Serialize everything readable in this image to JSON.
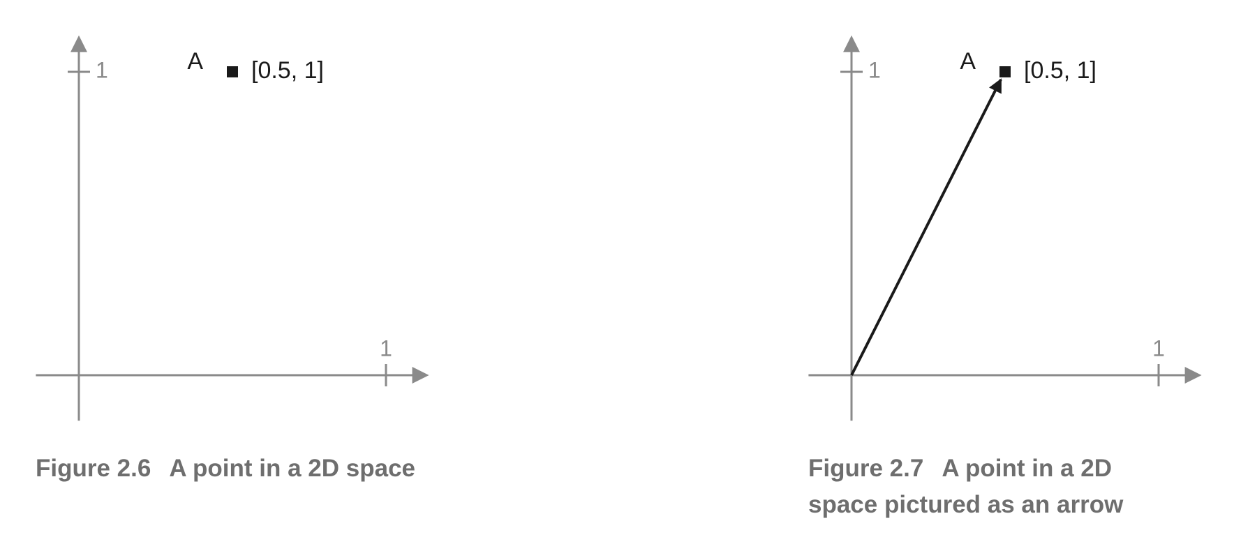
{
  "chart_data": [
    {
      "type": "scatter",
      "figure_number": "Figure 2.6",
      "caption": "A point in a 2D space",
      "x": [
        0.5
      ],
      "y": [
        1
      ],
      "point_labels": [
        "A"
      ],
      "value_labels": [
        "[0.5, 1]"
      ],
      "color": "#1a1a1a",
      "xlim": [
        -0.14,
        1.14
      ],
      "ylim": [
        -0.15,
        1.12
      ],
      "xticks": [
        1
      ],
      "yticks": [
        1
      ]
    },
    {
      "type": "vector",
      "figure_number": "Figure 2.7",
      "caption": "A point in a 2D space pictured as an arrow",
      "x": [
        0.5
      ],
      "y": [
        1
      ],
      "point_labels": [
        "A"
      ],
      "value_labels": [
        "[0.5, 1]"
      ],
      "color": "#1a1a1a",
      "xlim": [
        -0.14,
        1.14
      ],
      "ylim": [
        -0.15,
        1.12
      ],
      "xticks": [
        1
      ],
      "yticks": [
        1
      ]
    }
  ]
}
